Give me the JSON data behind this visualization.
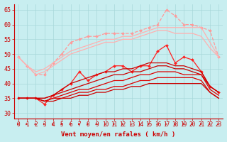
{
  "background_color": "#c8eef0",
  "grid_color": "#a8d8da",
  "x_labels": [
    "0",
    "1",
    "2",
    "3",
    "4",
    "5",
    "6",
    "7",
    "8",
    "9",
    "10",
    "11",
    "12",
    "13",
    "14",
    "15",
    "16",
    "17",
    "18",
    "19",
    "20",
    "21",
    "22",
    "23"
  ],
  "ylim": [
    28,
    67
  ],
  "yticks": [
    30,
    35,
    40,
    45,
    50,
    55,
    60,
    65
  ],
  "xlabel": "Vent moyen/en rafales ( km/h )",
  "series": [
    {
      "label": "rafales_dotted_light",
      "y": [
        49,
        46,
        43,
        43,
        47,
        50,
        54,
        55,
        56,
        56,
        57,
        57,
        57,
        57,
        58,
        59,
        60,
        65,
        63,
        60,
        60,
        59,
        58,
        49
      ],
      "color": "#ff9999",
      "marker": "D",
      "markersize": 2.0,
      "linewidth": 0.9,
      "linestyle": "--"
    },
    {
      "label": "upper_light1",
      "y": [
        49,
        46,
        44,
        45,
        47,
        49,
        51,
        52,
        53,
        54,
        55,
        55,
        56,
        56,
        57,
        58,
        59,
        59,
        59,
        59,
        59,
        59,
        54,
        49
      ],
      "color": "#ffb0b0",
      "marker": null,
      "markersize": 0,
      "linewidth": 0.9,
      "linestyle": "-"
    },
    {
      "label": "upper_light2",
      "y": [
        49,
        46,
        43,
        44,
        46,
        48,
        50,
        51,
        52,
        53,
        54,
        54,
        55,
        55,
        56,
        57,
        58,
        58,
        57,
        57,
        57,
        56,
        52,
        49
      ],
      "color": "#ffb0b0",
      "marker": null,
      "markersize": 0,
      "linewidth": 0.9,
      "linestyle": "-"
    },
    {
      "label": "mid_marker_red",
      "y": [
        35,
        35,
        35,
        33,
        36,
        38,
        40,
        44,
        41,
        43,
        44,
        46,
        46,
        44,
        46,
        46,
        51,
        53,
        47,
        49,
        48,
        44,
        39,
        37
      ],
      "color": "#ff2020",
      "marker": "D",
      "markersize": 2.0,
      "linewidth": 0.9,
      "linestyle": "-"
    },
    {
      "label": "mid_solid1",
      "y": [
        35,
        35,
        35,
        35,
        36,
        38,
        40,
        41,
        42,
        43,
        44,
        44,
        45,
        45,
        46,
        47,
        47,
        47,
        46,
        46,
        45,
        44,
        39,
        37
      ],
      "color": "#cc0000",
      "marker": null,
      "markersize": 0,
      "linewidth": 0.9,
      "linestyle": "-"
    },
    {
      "label": "mid_solid2",
      "y": [
        35,
        35,
        35,
        35,
        36,
        37,
        38,
        39,
        40,
        41,
        42,
        43,
        43,
        44,
        44,
        45,
        46,
        46,
        45,
        45,
        44,
        43,
        39,
        37
      ],
      "color": "#cc0000",
      "marker": null,
      "markersize": 0,
      "linewidth": 0.9,
      "linestyle": "-"
    },
    {
      "label": "lower_solid1",
      "y": [
        35,
        35,
        35,
        34,
        35,
        36,
        37,
        38,
        38,
        39,
        40,
        41,
        41,
        42,
        43,
        43,
        44,
        44,
        44,
        43,
        43,
        43,
        38,
        36
      ],
      "color": "#dd0000",
      "marker": null,
      "markersize": 0,
      "linewidth": 0.9,
      "linestyle": "-"
    },
    {
      "label": "lower_solid2",
      "y": [
        35,
        35,
        35,
        34,
        35,
        35,
        36,
        37,
        37,
        38,
        38,
        39,
        39,
        40,
        41,
        41,
        42,
        42,
        42,
        42,
        42,
        41,
        37,
        35
      ],
      "color": "#dd0000",
      "marker": null,
      "markersize": 0,
      "linewidth": 0.9,
      "linestyle": "-"
    },
    {
      "label": "bottom_line",
      "y": [
        35,
        35,
        35,
        34,
        34,
        35,
        35,
        36,
        36,
        37,
        37,
        38,
        38,
        39,
        39,
        40,
        40,
        40,
        40,
        40,
        40,
        40,
        37,
        35
      ],
      "color": "#cc0000",
      "marker": null,
      "markersize": 0,
      "linewidth": 0.9,
      "linestyle": "-"
    }
  ],
  "arrow_color": "#cc2222",
  "axis_label_color": "#cc0000",
  "tick_color": "#cc0000",
  "tick_fontsize": 5.5,
  "xlabel_fontsize": 6.5
}
